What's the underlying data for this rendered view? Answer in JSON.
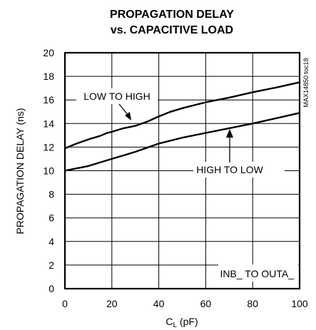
{
  "chart_data": {
    "type": "line",
    "title_line1": "PROPAGATION DELAY",
    "title_line2": "vs. CAPACITIVE LOAD",
    "xlabel_main": "C",
    "xlabel_sub": "L",
    "xlabel_unit": " (pF)",
    "ylabel": "PROPAGATION DELAY (ns)",
    "xlim": [
      0,
      100
    ],
    "ylim": [
      0,
      20
    ],
    "xticks": [
      0,
      20,
      40,
      60,
      80,
      100
    ],
    "yticks": [
      0,
      2,
      4,
      6,
      8,
      10,
      12,
      14,
      16,
      18,
      20
    ],
    "grid": true,
    "part_number": "MAX14850 toc18",
    "condition_label": "INB_ TO OUTA_",
    "series": [
      {
        "name": "LOW TO HIGH",
        "x": [
          0,
          5,
          10,
          15,
          18,
          20,
          25,
          30,
          35,
          40,
          45,
          50,
          60,
          70,
          80,
          90,
          100
        ],
        "y": [
          11.9,
          12.3,
          12.65,
          12.95,
          13.2,
          13.3,
          13.6,
          13.8,
          14.15,
          14.6,
          15.0,
          15.3,
          15.8,
          16.2,
          16.65,
          17.05,
          17.5
        ]
      },
      {
        "name": "HIGH TO LOW",
        "x": [
          0,
          5,
          10,
          15,
          20,
          25,
          30,
          35,
          40,
          45,
          50,
          60,
          70,
          80,
          90,
          100
        ],
        "y": [
          10.0,
          10.2,
          10.4,
          10.7,
          11.0,
          11.3,
          11.6,
          11.95,
          12.3,
          12.55,
          12.8,
          13.2,
          13.6,
          14.0,
          14.45,
          14.9
        ]
      }
    ]
  }
}
